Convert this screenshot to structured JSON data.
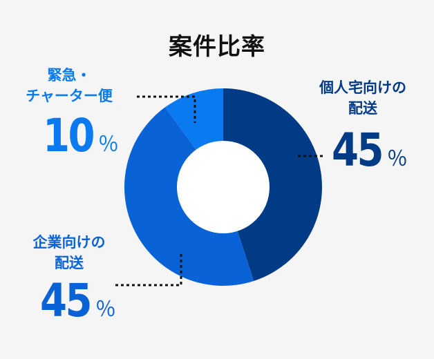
{
  "chart_data": {
    "type": "pie",
    "title": "案件比率",
    "unit": "％",
    "series": [
      {
        "key": "individual",
        "label_lines": [
          "個人宅向けの",
          "配送"
        ],
        "value": 45,
        "color": "#023b85"
      },
      {
        "key": "corporate",
        "label_lines": [
          "企業向けの",
          "配送"
        ],
        "value": 45,
        "color": "#0962d6"
      },
      {
        "key": "urgent",
        "label_lines": [
          "緊急・",
          "チャーター便"
        ],
        "value": 10,
        "color": "#0a7af0"
      }
    ]
  }
}
